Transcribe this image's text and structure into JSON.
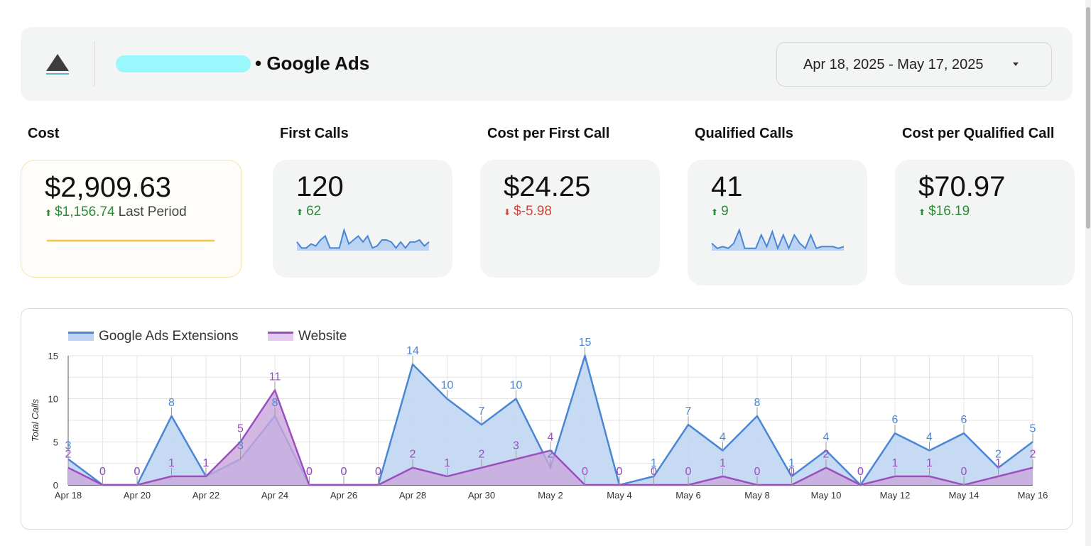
{
  "header": {
    "title": "• Google Ads",
    "date_range": "Apr 18, 2025 - May 17, 2025"
  },
  "kpis": [
    {
      "label": "Cost",
      "value": "$2,909.63",
      "delta": "$1,156.74",
      "delta_tail": "Last Period",
      "direction": "up"
    },
    {
      "label": "First Calls",
      "value": "120",
      "delta": "62",
      "delta_tail": "",
      "direction": "up"
    },
    {
      "label": "Cost per First Call",
      "value": "$24.25",
      "delta": "$-5.98",
      "delta_tail": "",
      "direction": "down"
    },
    {
      "label": "Qualified Calls",
      "value": "41",
      "delta": "9",
      "delta_tail": "",
      "direction": "up"
    },
    {
      "label": "Cost per Qualified Call",
      "value": "$70.97",
      "delta": "$16.19",
      "delta_tail": "",
      "direction": "up"
    }
  ],
  "sparklines": {
    "first_calls": [
      4,
      1,
      1,
      3,
      2,
      5,
      7,
      1,
      1,
      1,
      10,
      3,
      5,
      7,
      4,
      7,
      1,
      2,
      5,
      5,
      4,
      1,
      4,
      1,
      4,
      4,
      5,
      2,
      4
    ],
    "qualified_calls": [
      4,
      1,
      2,
      1,
      4,
      12,
      1,
      1,
      1,
      9,
      2,
      11,
      1,
      9,
      1,
      9,
      4,
      1,
      9,
      1,
      2,
      2,
      2,
      1,
      2
    ]
  },
  "colors": {
    "google_ads": "#4a86d4",
    "google_ads_fill": "#bcd4f2",
    "website": "#9b4fbf",
    "website_fill": "#c9a6dc",
    "up": "#2e8b3a",
    "down": "#d0473d",
    "highlight_line": "#f5c542"
  },
  "chart_data": {
    "type": "area",
    "ylabel": "Total Calls",
    "ylim": [
      0,
      15
    ],
    "yticks": [
      0,
      5,
      10,
      15
    ],
    "x": [
      "Apr 18",
      "Apr 19",
      "Apr 20",
      "Apr 21",
      "Apr 22",
      "Apr 23",
      "Apr 24",
      "Apr 25",
      "Apr 26",
      "Apr 27",
      "Apr 28",
      "Apr 29",
      "Apr 30",
      "May 1",
      "May 2",
      "May 3",
      "May 4",
      "May 5",
      "May 6",
      "May 7",
      "May 8",
      "May 9",
      "May 10",
      "May 11",
      "May 12",
      "May 13",
      "May 14",
      "May 15",
      "May 16"
    ],
    "xtick_labels": [
      "Apr 18",
      "Apr 20",
      "Apr 22",
      "Apr 24",
      "Apr 26",
      "Apr 28",
      "Apr 30",
      "May 2",
      "May 4",
      "May 6",
      "May 8",
      "May 10",
      "May 12",
      "May 14",
      "May 16"
    ],
    "legend_position": "top-left",
    "grid": true,
    "series": [
      {
        "name": "Google Ads Extensions",
        "values": [
          3,
          0,
          0,
          8,
          1,
          3,
          8,
          0,
          0,
          0,
          14,
          10,
          7,
          10,
          2,
          15,
          0,
          1,
          7,
          4,
          8,
          1,
          4,
          0,
          6,
          4,
          6,
          2,
          5
        ]
      },
      {
        "name": "Website",
        "values": [
          2,
          0,
          0,
          1,
          1,
          5,
          11,
          0,
          0,
          0,
          2,
          1,
          2,
          3,
          4,
          0,
          0,
          0,
          0,
          1,
          0,
          0,
          2,
          0,
          1,
          1,
          0,
          1,
          2
        ]
      }
    ]
  }
}
